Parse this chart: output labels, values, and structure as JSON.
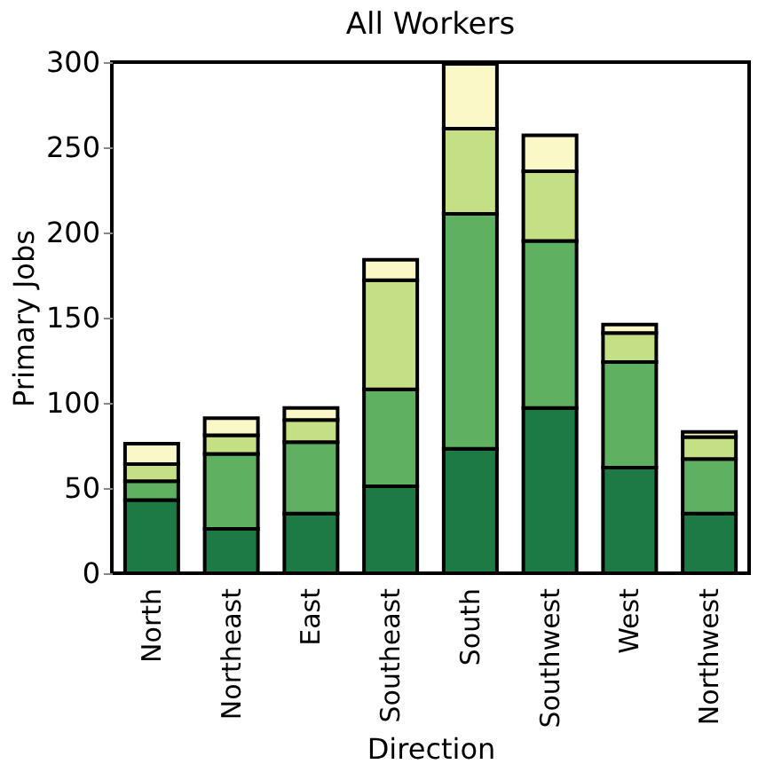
{
  "chart_data": {
    "type": "bar",
    "title": "All Workers",
    "xlabel": "Direction",
    "ylabel": "Primary Jobs",
    "stacked": true,
    "categories": [
      "North",
      "Northeast",
      "East",
      "Southeast",
      "South",
      "Southwest",
      "West",
      "Northwest"
    ],
    "series": [
      {
        "color": "#1e7a45",
        "values": [
          43,
          26,
          35,
          51,
          73,
          97,
          62,
          35
        ]
      },
      {
        "color": "#5fb060",
        "values": [
          11,
          44,
          42,
          57,
          138,
          98,
          62,
          32
        ]
      },
      {
        "color": "#c5df85",
        "values": [
          10,
          11,
          13,
          64,
          50,
          41,
          17,
          13
        ]
      },
      {
        "color": "#fbf8c8",
        "values": [
          12,
          10,
          7,
          12,
          38,
          21,
          5,
          3
        ]
      }
    ],
    "ylim": [
      0,
      300
    ],
    "yticks": [
      0,
      50,
      100,
      150,
      200,
      250,
      300
    ],
    "grid": false
  }
}
